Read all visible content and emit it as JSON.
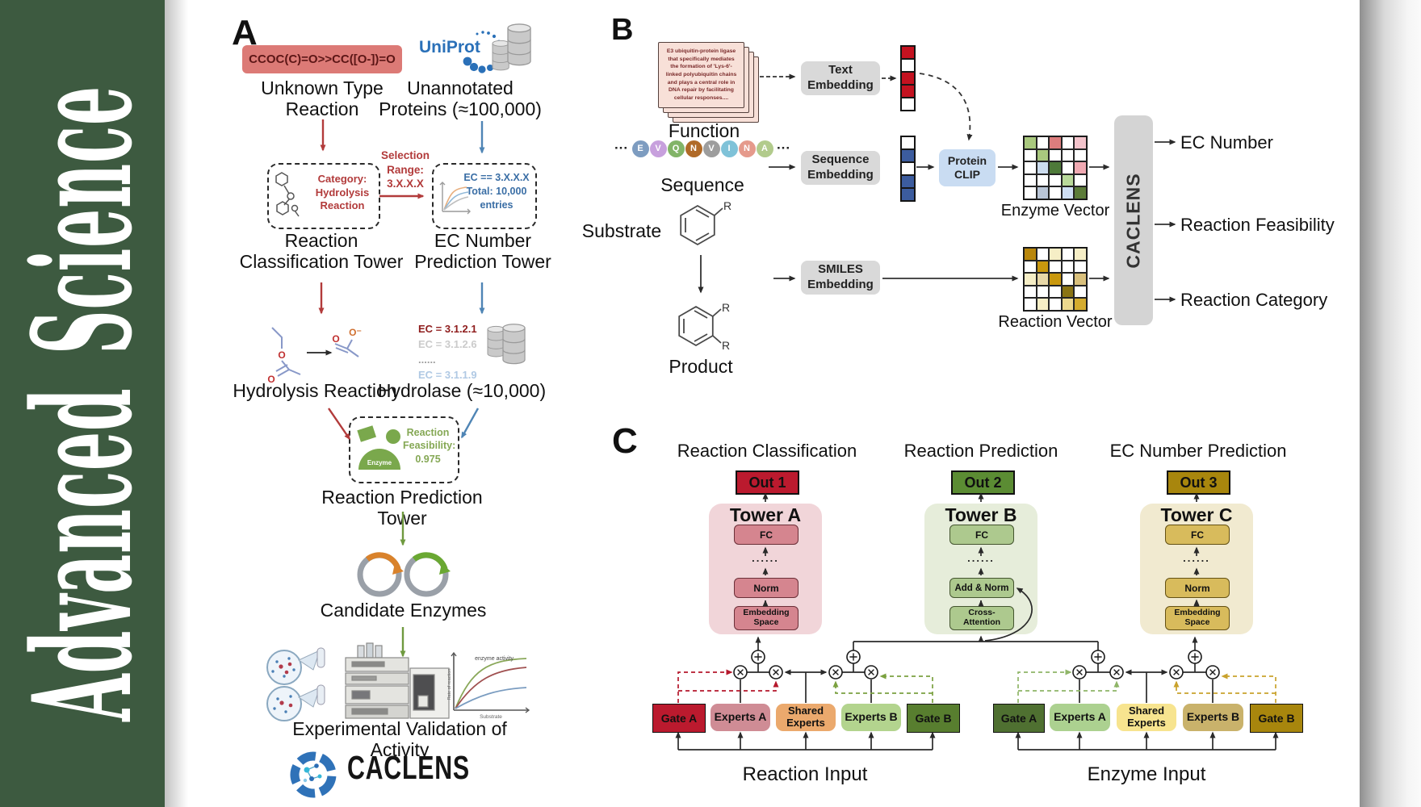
{
  "journal": {
    "word1": "Advanced",
    "word2": "Science"
  },
  "colors": {
    "sidebar_green": "#3d5a40",
    "smiles_red": "#dc7a76",
    "uniprot_blue": "#2a70b8",
    "out1_red": "#bb1a2e",
    "out2_green": "#5b8c33",
    "out3_gold": "#a8860d",
    "tower_a_pink": "#f1d5d9",
    "tower_b_green": "#e6edda",
    "tower_c_cream": "#f1ead0",
    "enzyme_green": "#7aa84c",
    "feasibility_green": "#85a855"
  },
  "panelA": {
    "label": "A",
    "smiles": "CCOC(C)=O>>CC([O-])=O",
    "unknown_reaction": "Unknown Type\nReaction",
    "uniprot": "UniProt",
    "unannotated": "Unannotated\nProteins (≈100,000)",
    "selection": "Selection\nRange:\n3.X.X.X",
    "category": "Category:\nHydrolysis\nReaction",
    "ec_range": "EC == 3.X.X.X\nTotal: 10,000\nentries",
    "classification_tower": "Reaction\nClassification Tower",
    "ec_tower": "EC Number\nPrediction Tower",
    "hydrolysis": "Hydrolysis Reaction",
    "atom_o": "O",
    "atom_o_minus": "O⁻",
    "ec_list": [
      {
        "text": "EC = 3.1.2.1",
        "color": "#8f1d1d"
      },
      {
        "text": "EC = 3.1.2.6",
        "color": "#cbcbcb"
      },
      {
        "text": "......",
        "color": "#9f9f9f"
      },
      {
        "text": "EC = 3.1.1.9",
        "color": "#b0c9e4"
      }
    ],
    "hydrolase": "Hydrolase (≈10,000)",
    "enzyme_badge": "Enzyme",
    "feasibility": "Reaction\nFeasibility:\n0.975",
    "prediction_tower": "Reaction Prediction Tower",
    "candidates": "Candidate Enzymes",
    "validation": "Experimental Validation of Activity",
    "brand": "CACLENS",
    "activity_plot": {
      "title": "enzyme activity",
      "xlabel": "Substrate",
      "ylabel": "Rate of reaction"
    }
  },
  "panelB": {
    "label": "B",
    "function_text": "E3 ubiquitin-protein ligase that specifically mediates the formation of 'Lys-6'-linked polyubiquitin chains and plays a central role in DNA repair by facilitating cellular responses....",
    "function_label": "Function",
    "ellipsis": "···",
    "residues": [
      {
        "letter": "E",
        "color": "#7d9cc0"
      },
      {
        "letter": "V",
        "color": "#c7a0dd"
      },
      {
        "letter": "Q",
        "color": "#82b468"
      },
      {
        "letter": "N",
        "color": "#b06a28"
      },
      {
        "letter": "V",
        "color": "#9d9d9d"
      },
      {
        "letter": "I",
        "color": "#7fc2d8"
      },
      {
        "letter": "N",
        "color": "#e59a8c"
      },
      {
        "letter": "A",
        "color": "#b2cb8c"
      }
    ],
    "sequence_label": "Sequence",
    "substrate_label": "Substrate",
    "product_label": "Product",
    "r_group": "R",
    "text_embedding": "Text\nEmbedding",
    "sequence_embedding": "Sequence\nEmbedding",
    "smiles_embedding": "SMILES\nEmbedding",
    "protein_clip": "Protein\nCLIP",
    "text_vector": [
      "#c41220",
      null,
      "#c41220",
      "#c41220",
      null
    ],
    "sequence_vector": [
      null,
      "#3c5c9e",
      null,
      "#3c5c9e",
      "#3c5c9e"
    ],
    "enzyme_matrix": [
      [
        "#a9c87e",
        null,
        "#dd7d7d",
        null,
        "#f3c3cb"
      ],
      [
        null,
        "#a9c87e",
        null,
        null,
        null
      ],
      [
        null,
        "#ccdcee",
        "#4e7a39",
        null,
        "#f0a9b2"
      ],
      [
        null,
        null,
        null,
        "#b9d99a",
        null
      ],
      [
        null,
        "#b9c5d6",
        null,
        "#cfdff4",
        "#5c7c39"
      ]
    ],
    "reaction_matrix": [
      [
        "#b8860b",
        null,
        "#f6eec6",
        null,
        "#f6eec6"
      ],
      [
        null,
        "#c9980e",
        null,
        null,
        null
      ],
      [
        "#f6eec6",
        "#e8d8a8",
        "#c9980e",
        null,
        "#d9c07c"
      ],
      [
        null,
        null,
        null,
        "#8a7414",
        null
      ],
      [
        null,
        "#f6eec6",
        null,
        "#ecd88e",
        "#d4ab2e"
      ]
    ],
    "enzyme_vector_label": "Enzyme Vector",
    "reaction_vector_label": "Reaction Vector",
    "caclens_bar": "CACLENS",
    "outputs": [
      "EC Number",
      "Reaction Feasibility",
      "Reaction Category"
    ]
  },
  "panelC": {
    "label": "C",
    "headings": [
      "Reaction Classification",
      "Reaction Prediction",
      "EC Number Prediction"
    ],
    "dots": "......",
    "towers": [
      {
        "out": "Out 1",
        "name": "Tower A",
        "top": "FC",
        "mid": "Norm",
        "bottom": "Embedding\nSpace"
      },
      {
        "out": "Out 2",
        "name": "Tower B",
        "top": "FC",
        "mid": "Add & Norm",
        "bottom": "Cross-\nAttention"
      },
      {
        "out": "Out 3",
        "name": "Tower C",
        "top": "FC",
        "mid": "Norm",
        "bottom": "Embedding\nSpace"
      }
    ],
    "groups": [
      {
        "label": "Reaction Input",
        "gate_a": "Gate A",
        "experts_a": "Experts A",
        "shared": "Shared\nExperts",
        "experts_b": "Experts B",
        "gate_b": "Gate B"
      },
      {
        "label": "Enzyme Input",
        "gate_a": "Gate A",
        "experts_a": "Experts A",
        "shared": "Shared\nExperts",
        "experts_b": "Experts B",
        "gate_b": "Gate B"
      }
    ]
  }
}
